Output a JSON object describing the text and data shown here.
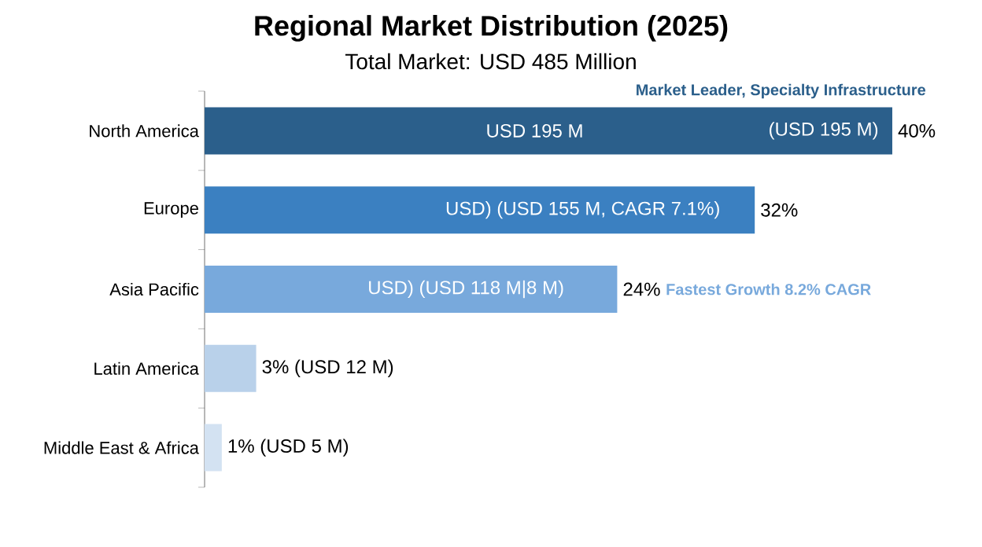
{
  "chart_data": {
    "type": "bar",
    "orientation": "horizontal",
    "title": "Regional Market Distribution (2025)",
    "subtitle": "Total Market: USD 485 Million",
    "categories": [
      "North America",
      "Europe",
      "Asia Pacific",
      "Latin America",
      "Middle East & Africa"
    ],
    "values": [
      40,
      32,
      24,
      3,
      1
    ],
    "colors": [
      "#2b5f8b",
      "#3b80c1",
      "#78a9dc",
      "#b9d1ea",
      "#d3e2f2"
    ],
    "value_labels": [
      "40%",
      "32%",
      "24%",
      "3% (USD 12 M)",
      "1% (USD 5 M)"
    ],
    "annotations": [
      "Market Leader, Specialty Infrastructure",
      "USD 195 M",
      "(USD 195 M)",
      "USD) (USD 155 M,  CAGR 7.1%)",
      "USD) (USD 118 M|8 M)",
      "Fastest Growth 8.2% CAGR"
    ]
  }
}
